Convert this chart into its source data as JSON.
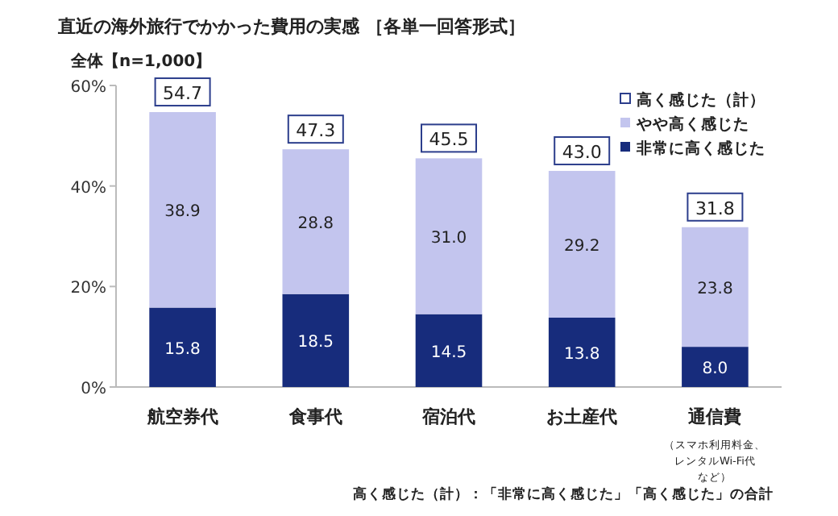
{
  "chart_data": {
    "type": "bar",
    "title": "直近の海外旅行でかかった費用の実感 ［各単一回答形式］",
    "subtitle": "全体【n=1,000】",
    "categories": [
      "航空券代",
      "食事代",
      "宿泊代",
      "お土産代",
      "通信費（スマホ利用料金、レンタルWi-Fi代など）"
    ],
    "stacked": true,
    "series": [
      {
        "name": "非常に高く感じた",
        "color": "#172c7c",
        "values": [
          15.8,
          18.5,
          14.5,
          13.8,
          8.0
        ],
        "value_labels": [
          "15.8",
          "18.5",
          "14.5",
          "13.8",
          "8.0"
        ]
      },
      {
        "name": "やや高く感じた",
        "color": "#c3c5ee",
        "values": [
          38.9,
          28.8,
          31.0,
          29.2,
          23.8
        ],
        "value_labels": [
          "38.9",
          "28.8",
          "31.0",
          "29.2",
          "23.8"
        ]
      }
    ],
    "totals": [
      "54.7",
      "47.3",
      "45.5",
      "43.0",
      "31.8"
    ],
    "legend_title": "高く感じた（計）",
    "legend": "top right",
    "ylim": [
      0,
      60
    ],
    "yticks": [
      {
        "value": 0,
        "label": "0%"
      },
      {
        "value": 20,
        "label": "20%"
      },
      {
        "value": 40,
        "label": "40%"
      },
      {
        "value": 60,
        "label": "60%"
      }
    ],
    "annotations": [
      "高く感じた（計）：「非常に高く感じた」「高く感じた」の合計"
    ]
  }
}
